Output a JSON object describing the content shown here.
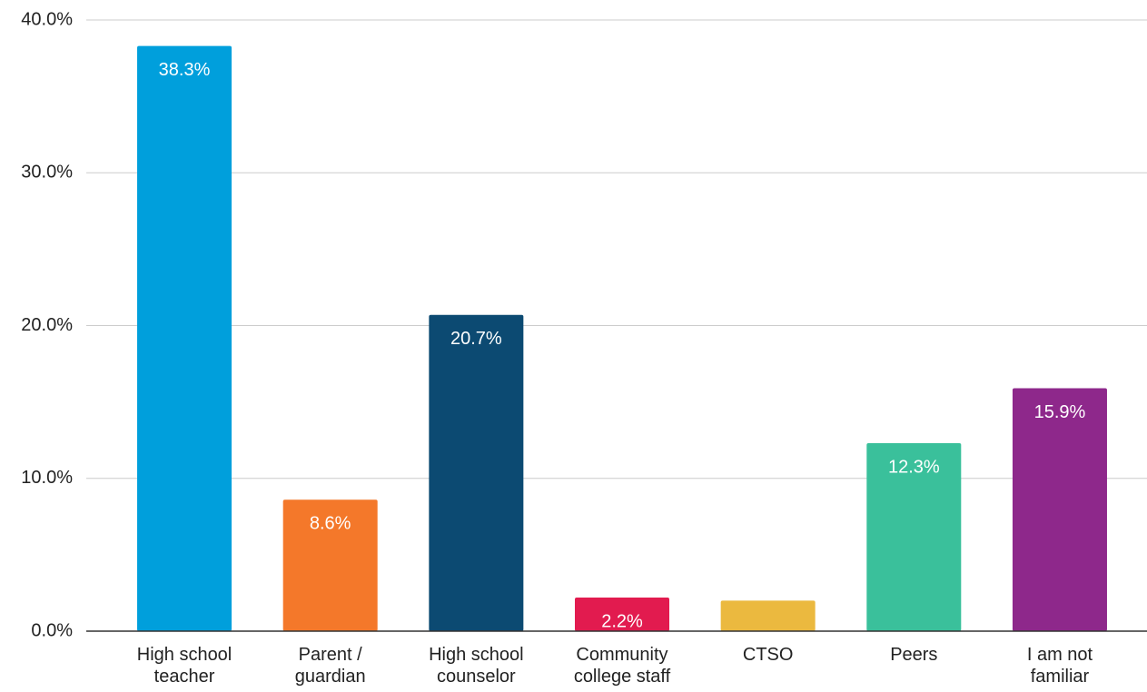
{
  "chart_data": {
    "type": "bar",
    "categories": [
      "High school teacher",
      "Parent / guardian",
      "High school counselor",
      "Community college staff",
      "CTSO",
      "Peers",
      "I am not familiar"
    ],
    "values": [
      38.3,
      8.6,
      20.7,
      2.2,
      2.0,
      12.3,
      15.9
    ],
    "value_labels": [
      "38.3%",
      "8.6%",
      "20.7%",
      "2.2%",
      null,
      "12.3%",
      "15.9%"
    ],
    "colors": [
      "#009fdc",
      "#f4782a",
      "#0c4a72",
      "#e21b4f",
      "#ebb93f",
      "#3ac09b",
      "#8e288b"
    ],
    "ylim": [
      0,
      40
    ],
    "yticks": [
      {
        "value": 0,
        "label": "0.0%"
      },
      {
        "value": 10,
        "label": "10.0%"
      },
      {
        "value": 20,
        "label": "20.0%"
      },
      {
        "value": 30,
        "label": "30.0%"
      },
      {
        "value": 40,
        "label": "40.0%"
      }
    ],
    "grid": true
  }
}
